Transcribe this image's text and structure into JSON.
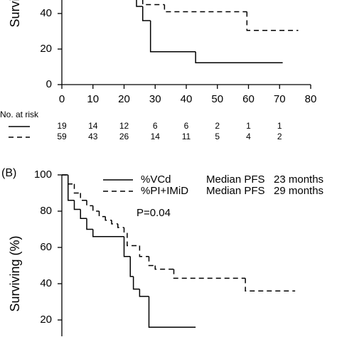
{
  "chart_data": [
    {
      "type": "step",
      "ylabel": "Surviving (%)",
      "xlim": [
        0,
        80
      ],
      "xticks": [
        0,
        10,
        20,
        30,
        40,
        50,
        60,
        70,
        80
      ],
      "ylim": [
        0,
        48
      ],
      "yticks": [
        0,
        20,
        40
      ],
      "series": [
        {
          "style": "solid",
          "x": [
            24,
            24,
            26,
            28.5,
            43,
            71
          ],
          "values": [
            48,
            44,
            36,
            18.5,
            12.3,
            12.3
          ]
        },
        {
          "style": "dashed",
          "x": [
            26,
            26,
            33,
            59.5,
            76
          ],
          "values": [
            48,
            45,
            41,
            30.5,
            30.5
          ]
        }
      ],
      "risk_table": {
        "label": "No. at risk",
        "rows": [
          [
            19,
            14,
            12,
            6,
            6,
            2,
            1,
            1
          ],
          [
            59,
            43,
            26,
            14,
            11,
            5,
            4,
            2
          ]
        ]
      }
    },
    {
      "type": "step",
      "panel_label": "(B)",
      "ylabel": "Surviving (%)",
      "xlim": [
        0,
        80
      ],
      "ylim": [
        11,
        100
      ],
      "yticks": [
        20,
        40,
        60,
        80,
        100
      ],
      "annotation": "P=0.04",
      "series": [
        {
          "name": "%VCd",
          "style": "solid",
          "median_label": "Median PFS",
          "median_text": "23 months",
          "x": [
            0,
            2,
            4,
            6,
            8,
            10,
            20,
            22,
            23,
            25,
            28,
            43
          ],
          "values": [
            100,
            86,
            81,
            76,
            70,
            66,
            55,
            44,
            37,
            33,
            16,
            16
          ]
        },
        {
          "name": "%PI+IMiD",
          "style": "dashed",
          "median_label": "Median PFS",
          "median_text": "29 months",
          "x": [
            0,
            2,
            4,
            6,
            8,
            10,
            12,
            14,
            16,
            18,
            20,
            21,
            25,
            28,
            30,
            36,
            59,
            75
          ],
          "values": [
            100,
            95,
            90,
            86,
            83,
            80,
            77,
            75,
            73,
            71,
            68,
            61,
            55,
            50,
            48,
            43,
            36,
            36
          ]
        }
      ]
    }
  ]
}
